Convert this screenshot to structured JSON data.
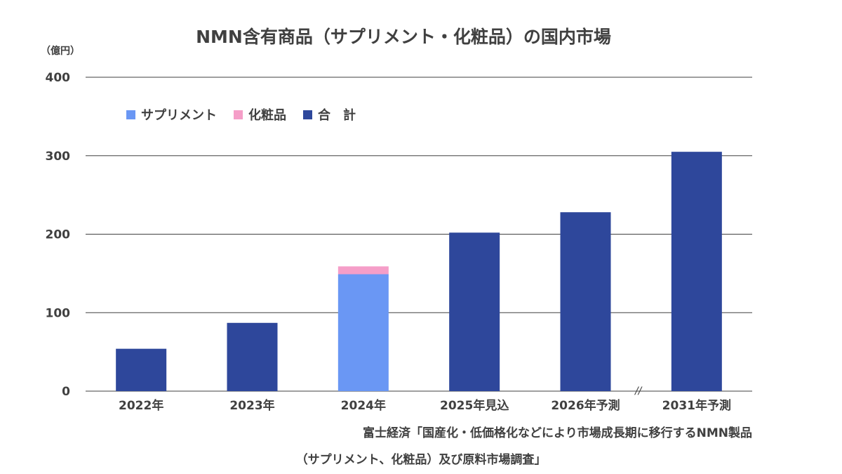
{
  "title": "NMN含有商品（サプリメント・化粧品）の国内市場",
  "unit": "（億円）",
  "source": {
    "line1": "富士経済「国産化・低価格化などにより市場成長期に移行するNMN製品",
    "line2": "（サプリメント、化粧品）及び原料市場調査」"
  },
  "axis_break_mark": "//",
  "legend": [
    {
      "label": "サプリメント",
      "color": "#6A97F4"
    },
    {
      "label": "化粧品",
      "color": "#F59EC8"
    },
    {
      "label": "合　計",
      "color": "#2E479B"
    }
  ],
  "chart_data": {
    "type": "bar",
    "title": "NMN含有商品（サプリメント・化粧品）の国内市場",
    "ylabel": "（億円）",
    "ylim": [
      0,
      400
    ],
    "yticks": [
      0,
      100,
      200,
      300,
      400
    ],
    "grid": true,
    "legend_position": "top-left",
    "categories": [
      "2022年",
      "2023年",
      "2024年",
      "2025年見込",
      "2026年予測",
      "2031年予測"
    ],
    "series": [
      {
        "name": "サプリメント",
        "color": "#6A97F4",
        "values": [
          null,
          null,
          149,
          null,
          null,
          null
        ]
      },
      {
        "name": "化粧品",
        "color": "#F59EC8",
        "values": [
          null,
          null,
          10,
          null,
          null,
          null
        ]
      },
      {
        "name": "合　計",
        "color": "#2E479B",
        "values": [
          54,
          87,
          null,
          202,
          228,
          305
        ]
      }
    ]
  }
}
